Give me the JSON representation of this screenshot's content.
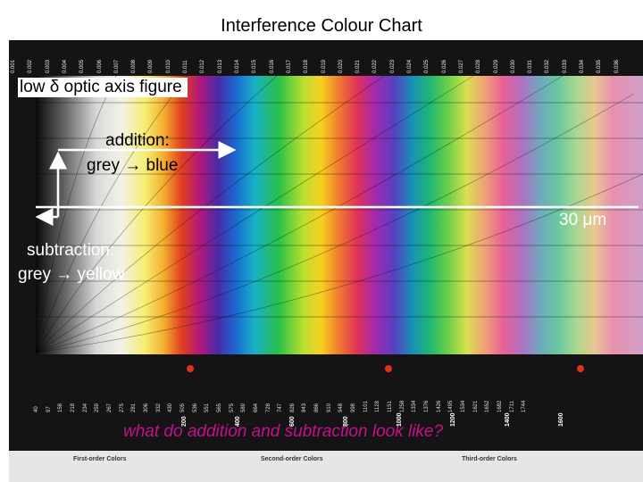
{
  "title": "Interference Colour Chart",
  "birefringence_labels": [
    "0.001",
    "0.002",
    "0.003",
    "0.004",
    "0.005",
    "0.006",
    "0.007",
    "0.008",
    "0.009",
    "0.010",
    "0.011",
    "0.012",
    "0.013",
    "0.014",
    "0.015",
    "0.016",
    "0.017",
    "0.018",
    "0.019",
    "0.020",
    "0.021",
    "0.022",
    "0.023",
    "0.024",
    "0.025",
    "0.026",
    "0.027",
    "0.028",
    "0.029",
    "0.030",
    "0.031",
    "0.032",
    "0.033",
    "0.034",
    "0.035",
    "0.036"
  ],
  "retardation_labels": [
    "40",
    "97",
    "158",
    "218",
    "234",
    "259",
    "267",
    "275",
    "281",
    "306",
    "332",
    "430",
    "505",
    "536",
    "551",
    "565",
    "575",
    "589",
    "664",
    "728",
    "747",
    "826",
    "843",
    "866",
    "910",
    "948",
    "998",
    "1101",
    "1128",
    "1151",
    "1258",
    "1334",
    "1376",
    "1426",
    "1495",
    "1534",
    "1621",
    "1652",
    "1682",
    "1711",
    "1744"
  ],
  "retardation_major": [
    "200",
    "400",
    "600",
    "800",
    "1000",
    "1200",
    "1400",
    "1600"
  ],
  "annotations": {
    "optic_axis": "low δ optic axis figure",
    "addition": "addition:",
    "addition_detail": "grey → blue",
    "thickness": "30 μm",
    "subtraction": "subtraction:",
    "subtraction_detail": "grey → yellow",
    "question": "what do addition and subtraction look like?"
  },
  "order_labels": [
    "First-order Colors",
    "Second-order Colors",
    "Third-order Colors"
  ]
}
